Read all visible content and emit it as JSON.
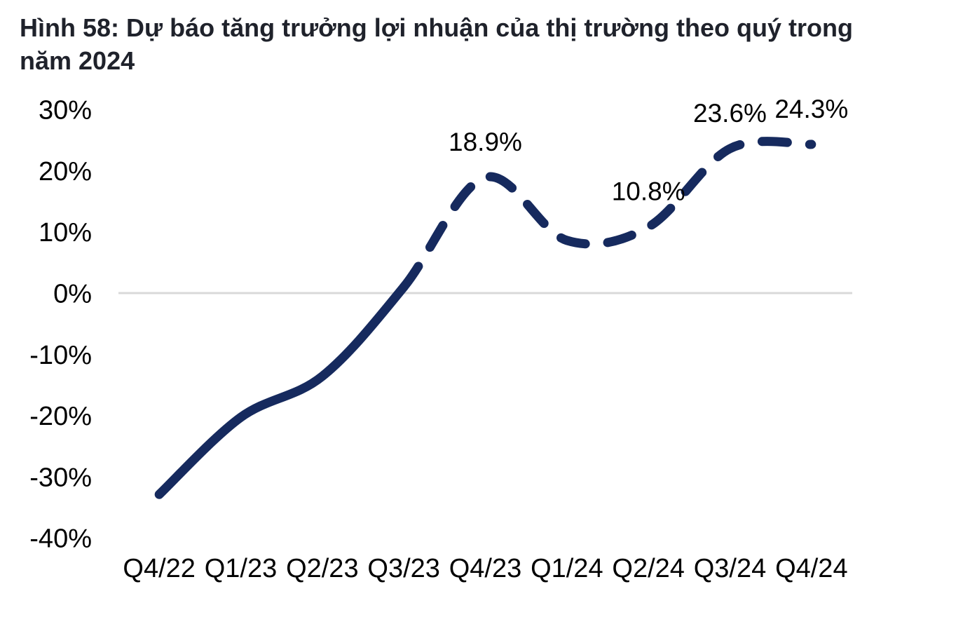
{
  "header": {
    "line1": "Hình 58: Dự báo tăng trưởng lợi nhuận của thị trường theo quý trong",
    "line2": "năm 2024"
  },
  "colors": {
    "line": "#162a5e",
    "zero_line": "#d9d9d9",
    "axis_text": "#000000",
    "title_text": "#1f222b",
    "background": "#ffffff"
  },
  "chart_data": {
    "type": "line",
    "title": "Hình 58: Dự báo tăng trưởng lợi nhuận của thị trường theo quý trong năm 2024",
    "categories": [
      "Q4/22",
      "Q1/23",
      "Q2/23",
      "Q3/23",
      "Q4/23",
      "Q1/24",
      "Q2/24",
      "Q3/24",
      "Q4/24"
    ],
    "values": [
      -32.9,
      -20.3,
      -13.6,
      1.0,
      18.9,
      8.6,
      10.8,
      23.6,
      24.3
    ],
    "labeled_points": [
      {
        "index": 4,
        "text": "18.9%"
      },
      {
        "index": 6,
        "text": "10.8%"
      },
      {
        "index": 7,
        "text": "23.6%"
      },
      {
        "index": 8,
        "text": "24.3%"
      }
    ],
    "y_ticks": [
      {
        "label": "30%",
        "value": 30
      },
      {
        "label": "20%",
        "value": 20
      },
      {
        "label": "10%",
        "value": 10
      },
      {
        "label": "0%",
        "value": 0
      },
      {
        "label": "-10%",
        "value": -10
      },
      {
        "label": "-20%",
        "value": -20
      },
      {
        "label": "-30%",
        "value": -30
      },
      {
        "label": "-40%",
        "value": -40
      }
    ],
    "ylim": [
      -40,
      30
    ],
    "xlabel": "",
    "ylabel": "",
    "legend": "none",
    "grid": "zero-line-only",
    "line_style": {
      "solid_until_index": 3,
      "dashed_from_index": 3,
      "dashed_is_forecast": true
    }
  }
}
